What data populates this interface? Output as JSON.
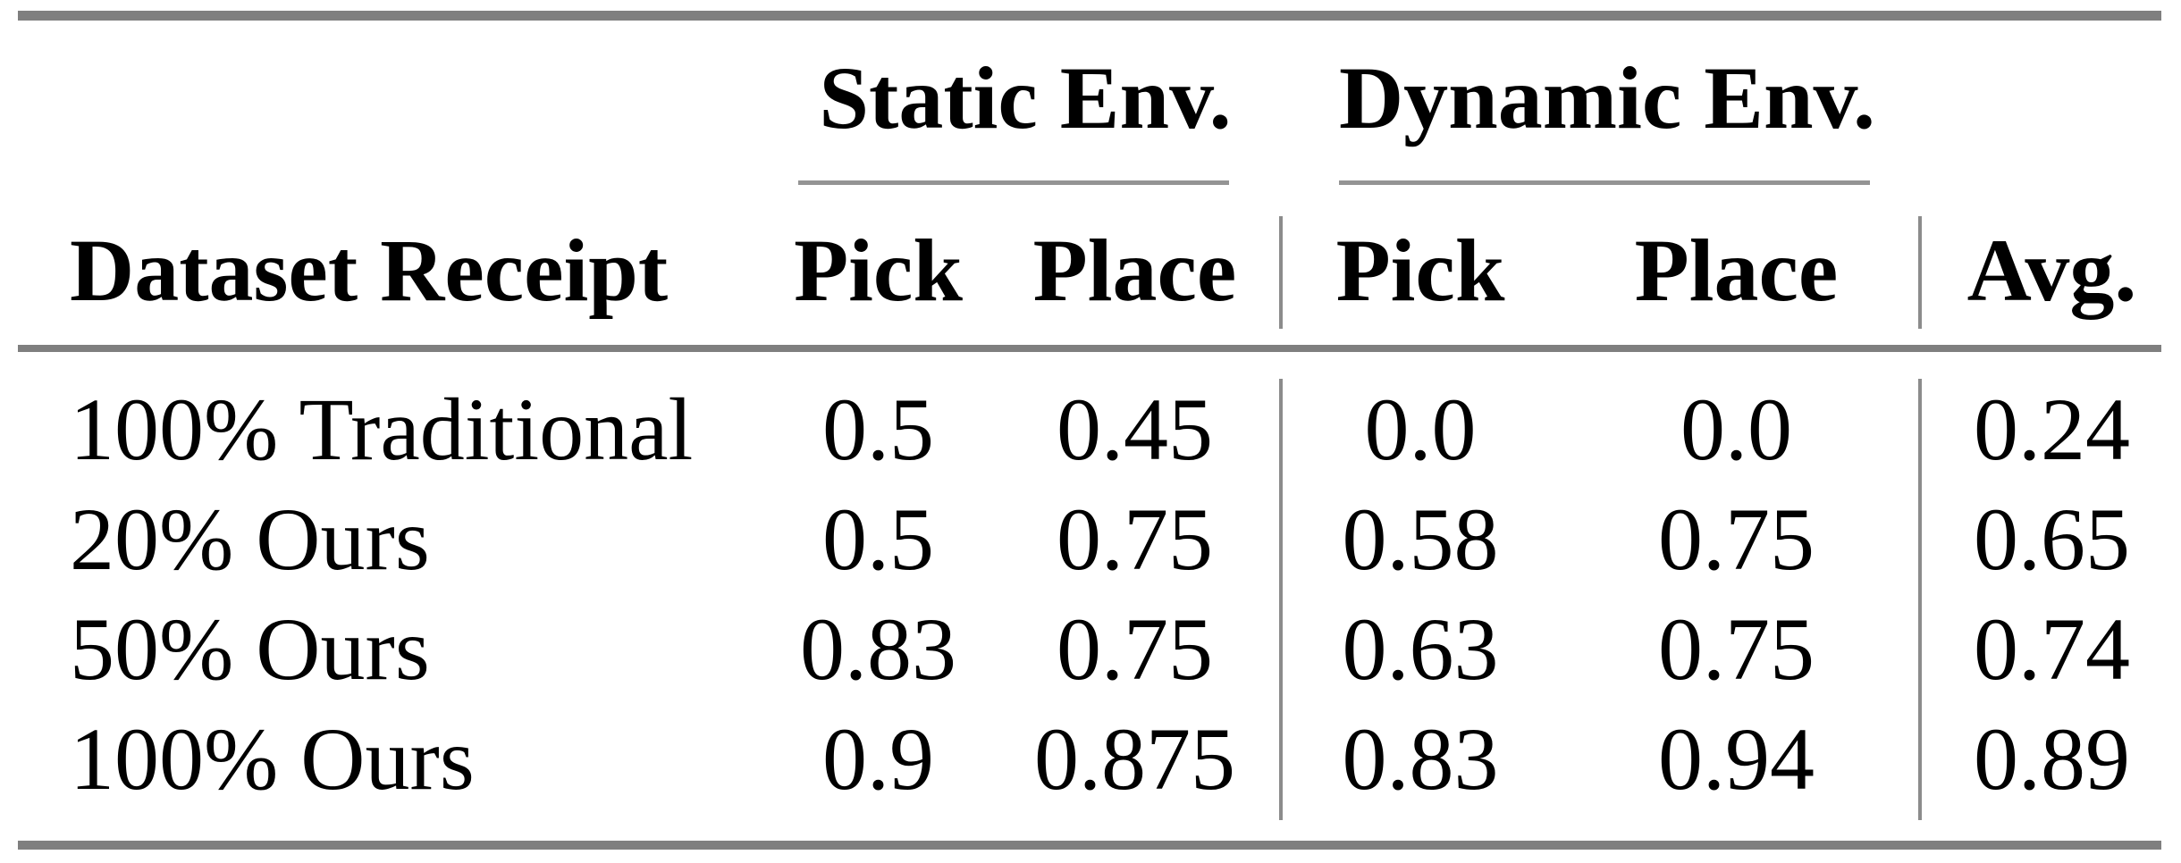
{
  "table": {
    "group_headers": [
      {
        "label": "Static Env."
      },
      {
        "label": "Dynamic Env."
      }
    ],
    "columns": {
      "row_header": "Dataset Receipt",
      "static_pick": "Pick",
      "static_place": "Place",
      "dynamic_pick": "Pick",
      "dynamic_place": "Place",
      "avg": "Avg."
    },
    "rows": [
      {
        "label": "100% Traditional",
        "static_pick": "0.5",
        "static_place": "0.45",
        "dynamic_pick": "0.0",
        "dynamic_place": "0.0",
        "avg": "0.24"
      },
      {
        "label": "20% Ours",
        "static_pick": "0.5",
        "static_place": "0.75",
        "dynamic_pick": "0.58",
        "dynamic_place": "0.75",
        "avg": "0.65"
      },
      {
        "label": "50% Ours",
        "static_pick": "0.83",
        "static_place": "0.75",
        "dynamic_pick": "0.63",
        "dynamic_place": "0.75",
        "avg": "0.74"
      },
      {
        "label": "100% Ours",
        "static_pick": "0.9",
        "static_place": "0.875",
        "dynamic_pick": "0.83",
        "dynamic_place": "0.94",
        "avg": "0.89"
      }
    ]
  },
  "chart_data": {
    "type": "table",
    "title": "",
    "column_groups": [
      "",
      "Static Env.",
      "Static Env.",
      "Dynamic Env.",
      "Dynamic Env.",
      ""
    ],
    "columns": [
      "Dataset Receipt",
      "Pick",
      "Place",
      "Pick",
      "Place",
      "Avg."
    ],
    "rows": [
      [
        "100% Traditional",
        0.5,
        0.45,
        0.0,
        0.0,
        0.24
      ],
      [
        "20% Ours",
        0.5,
        0.75,
        0.58,
        0.75,
        0.65
      ],
      [
        "50% Ours",
        0.83,
        0.75,
        0.63,
        0.75,
        0.74
      ],
      [
        "100% Ours",
        0.9,
        0.875,
        0.83,
        0.94,
        0.89
      ]
    ]
  },
  "colors": {
    "rule_gray": "#7f7f7f",
    "thin_rule_gray": "#949494",
    "separator_gray": "#8c8c8c",
    "text": "#000000",
    "background": "#ffffff"
  }
}
